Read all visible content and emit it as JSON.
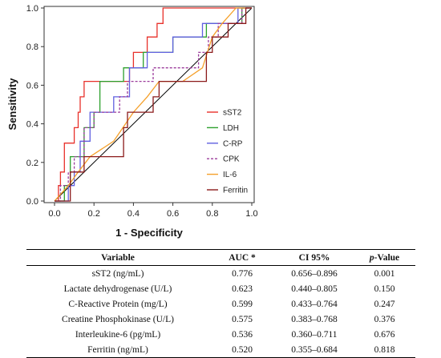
{
  "chart_data": {
    "type": "line",
    "xlabel": "1 - Specificity",
    "ylabel": "Sensitivity",
    "xlim": [
      0,
      1
    ],
    "ylim": [
      0,
      1
    ],
    "x_ticks": [
      "0.0",
      "0.2",
      "0.4",
      "0.6",
      "0.8",
      "1.0"
    ],
    "y_ticks": [
      "0.0",
      "0.2",
      "0.4",
      "0.6",
      "0.8",
      "1.0"
    ],
    "legend_position": "right",
    "reference_line": {
      "from": [
        0,
        0
      ],
      "to": [
        1,
        1
      ],
      "color": "#000000"
    },
    "series": [
      {
        "name": "sST2",
        "color": "#e8302a",
        "dash": "solid",
        "points": [
          [
            0,
            0
          ],
          [
            0.02,
            0
          ],
          [
            0.02,
            0.08
          ],
          [
            0.03,
            0.08
          ],
          [
            0.03,
            0.15
          ],
          [
            0.05,
            0.15
          ],
          [
            0.05,
            0.3
          ],
          [
            0.1,
            0.3
          ],
          [
            0.1,
            0.38
          ],
          [
            0.12,
            0.38
          ],
          [
            0.12,
            0.46
          ],
          [
            0.13,
            0.46
          ],
          [
            0.13,
            0.54
          ],
          [
            0.15,
            0.54
          ],
          [
            0.15,
            0.62
          ],
          [
            0.38,
            0.62
          ],
          [
            0.38,
            0.69
          ],
          [
            0.4,
            0.69
          ],
          [
            0.4,
            0.77
          ],
          [
            0.47,
            0.77
          ],
          [
            0.47,
            0.85
          ],
          [
            0.52,
            0.85
          ],
          [
            0.52,
            0.92
          ],
          [
            0.55,
            0.92
          ],
          [
            0.55,
            1.0
          ],
          [
            1.0,
            1.0
          ]
        ]
      },
      {
        "name": "LDH",
        "color": "#2ca02c",
        "dash": "solid",
        "points": [
          [
            0,
            0
          ],
          [
            0.05,
            0
          ],
          [
            0.05,
            0.08
          ],
          [
            0.08,
            0.08
          ],
          [
            0.08,
            0.23
          ],
          [
            0.15,
            0.23
          ],
          [
            0.15,
            0.38
          ],
          [
            0.2,
            0.38
          ],
          [
            0.2,
            0.46
          ],
          [
            0.23,
            0.46
          ],
          [
            0.23,
            0.62
          ],
          [
            0.35,
            0.62
          ],
          [
            0.35,
            0.69
          ],
          [
            0.45,
            0.69
          ],
          [
            0.45,
            0.77
          ],
          [
            0.6,
            0.77
          ],
          [
            0.6,
            0.85
          ],
          [
            0.77,
            0.85
          ],
          [
            0.77,
            0.92
          ],
          [
            0.95,
            0.92
          ],
          [
            0.95,
            1.0
          ],
          [
            1.0,
            1.0
          ]
        ]
      },
      {
        "name": "C-RP",
        "color": "#6060e0",
        "dash": "solid",
        "points": [
          [
            0,
            0
          ],
          [
            0.07,
            0
          ],
          [
            0.07,
            0.08
          ],
          [
            0.1,
            0.08
          ],
          [
            0.1,
            0.15
          ],
          [
            0.13,
            0.15
          ],
          [
            0.13,
            0.31
          ],
          [
            0.18,
            0.31
          ],
          [
            0.18,
            0.46
          ],
          [
            0.3,
            0.46
          ],
          [
            0.3,
            0.54
          ],
          [
            0.38,
            0.54
          ],
          [
            0.38,
            0.69
          ],
          [
            0.47,
            0.69
          ],
          [
            0.47,
            0.77
          ],
          [
            0.6,
            0.77
          ],
          [
            0.6,
            0.85
          ],
          [
            0.75,
            0.85
          ],
          [
            0.75,
            0.92
          ],
          [
            0.93,
            0.92
          ],
          [
            0.93,
            1.0
          ],
          [
            1.0,
            1.0
          ]
        ]
      },
      {
        "name": "CPK",
        "color": "#9b3b9b",
        "dash": "dashed",
        "points": [
          [
            0,
            0
          ],
          [
            0.03,
            0
          ],
          [
            0.03,
            0.08
          ],
          [
            0.07,
            0.08
          ],
          [
            0.07,
            0.15
          ],
          [
            0.1,
            0.15
          ],
          [
            0.1,
            0.23
          ],
          [
            0.15,
            0.23
          ],
          [
            0.15,
            0.38
          ],
          [
            0.2,
            0.38
          ],
          [
            0.2,
            0.46
          ],
          [
            0.33,
            0.46
          ],
          [
            0.33,
            0.54
          ],
          [
            0.37,
            0.54
          ],
          [
            0.37,
            0.62
          ],
          [
            0.5,
            0.62
          ],
          [
            0.5,
            0.69
          ],
          [
            0.73,
            0.69
          ],
          [
            0.73,
            0.77
          ],
          [
            0.78,
            0.77
          ],
          [
            0.78,
            0.85
          ],
          [
            0.83,
            0.85
          ],
          [
            0.83,
            0.92
          ],
          [
            0.95,
            0.92
          ],
          [
            0.95,
            1.0
          ],
          [
            1.0,
            1.0
          ]
        ]
      },
      {
        "name": "IL-6",
        "color": "#f5a02a",
        "dash": "solid",
        "points": [
          [
            0,
            0
          ],
          [
            0.07,
            0.08
          ],
          [
            0.12,
            0.15
          ],
          [
            0.18,
            0.23
          ],
          [
            0.3,
            0.31
          ],
          [
            0.4,
            0.46
          ],
          [
            0.47,
            0.54
          ],
          [
            0.53,
            0.62
          ],
          [
            0.65,
            0.62
          ],
          [
            0.75,
            0.69
          ],
          [
            0.8,
            0.85
          ],
          [
            0.85,
            0.92
          ],
          [
            0.92,
            1.0
          ],
          [
            1.0,
            1.0
          ]
        ]
      },
      {
        "name": "Ferritin",
        "color": "#8b1a1a",
        "dash": "solid",
        "points": [
          [
            0,
            0
          ],
          [
            0.08,
            0
          ],
          [
            0.08,
            0.15
          ],
          [
            0.15,
            0.15
          ],
          [
            0.15,
            0.23
          ],
          [
            0.35,
            0.23
          ],
          [
            0.35,
            0.38
          ],
          [
            0.37,
            0.38
          ],
          [
            0.37,
            0.46
          ],
          [
            0.5,
            0.46
          ],
          [
            0.5,
            0.54
          ],
          [
            0.53,
            0.54
          ],
          [
            0.53,
            0.62
          ],
          [
            0.77,
            0.62
          ],
          [
            0.77,
            0.77
          ],
          [
            0.8,
            0.77
          ],
          [
            0.8,
            0.85
          ],
          [
            0.88,
            0.85
          ],
          [
            0.88,
            0.92
          ],
          [
            0.97,
            0.92
          ],
          [
            0.97,
            1.0
          ],
          [
            1.0,
            1.0
          ]
        ]
      }
    ]
  },
  "table": {
    "headers": {
      "variable": "Variable",
      "auc": "AUC *",
      "ci": "CI 95%",
      "p_italic": "p",
      "p_rest": "-Value"
    },
    "rows": [
      {
        "variable": "sST2 (ng/mL)",
        "auc": "0.776",
        "ci": "0.656–0.896",
        "p": "0.001"
      },
      {
        "variable": "Lactate dehydrogenase (U/L)",
        "auc": "0.623",
        "ci": "0.440–0.805",
        "p": "0.150"
      },
      {
        "variable": "C-Reactive Protein (mg/L)",
        "auc": "0.599",
        "ci": "0.433–0.764",
        "p": "0.247"
      },
      {
        "variable": "Creatine Phosphokinase (U/L)",
        "auc": "0.575",
        "ci": "0.383–0.768",
        "p": "0.376"
      },
      {
        "variable": "Interleukine-6 (pg/mL)",
        "auc": "0.536",
        "ci": "0.360–0.711",
        "p": "0.676"
      },
      {
        "variable": "Ferritin (ng/mL)",
        "auc": "0.520",
        "ci": "0.355–0.684",
        "p": "0.818"
      }
    ]
  }
}
